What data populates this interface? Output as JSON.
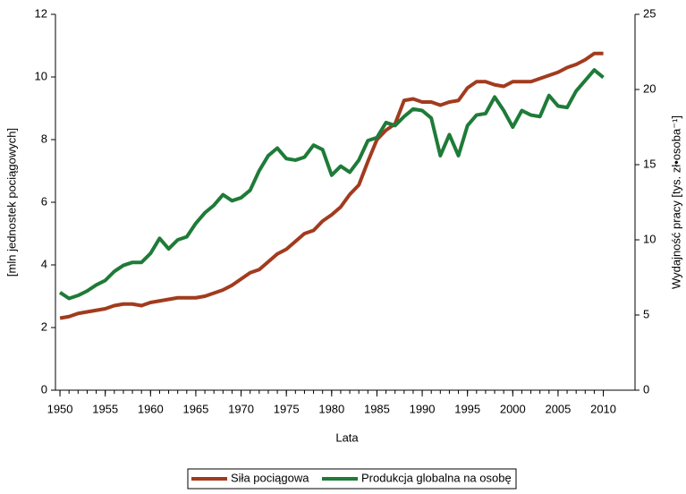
{
  "chart_data": {
    "type": "line",
    "x_label": "Lata",
    "y_label": "[mln jednostek pociągowych]",
    "y2_label": "Wydajność pracy [tys. zł•osoba⁻¹]",
    "x": [
      1950,
      1951,
      1952,
      1953,
      1954,
      1955,
      1956,
      1957,
      1958,
      1959,
      1960,
      1961,
      1962,
      1963,
      1964,
      1965,
      1966,
      1967,
      1968,
      1969,
      1970,
      1971,
      1972,
      1973,
      1974,
      1975,
      1976,
      1977,
      1978,
      1979,
      1980,
      1981,
      1982,
      1983,
      1984,
      1985,
      1986,
      1987,
      1988,
      1989,
      1990,
      1991,
      1992,
      1993,
      1994,
      1995,
      1996,
      1997,
      1998,
      1999,
      2000,
      2001,
      2002,
      2003,
      2004,
      2005,
      2006,
      2007,
      2008,
      2009,
      2010
    ],
    "xlim": [
      1949.5,
      2013.5
    ],
    "xticks": [
      1950,
      1955,
      1960,
      1965,
      1970,
      1975,
      1980,
      1985,
      1990,
      1995,
      2000,
      2005,
      2010
    ],
    "ylim": [
      0,
      12
    ],
    "yticks": [
      0,
      2,
      4,
      6,
      8,
      10,
      12
    ],
    "y2lim": [
      0,
      25
    ],
    "y2ticks": [
      0,
      5,
      10,
      15,
      20,
      25
    ],
    "legend": "bottom",
    "series": [
      {
        "name": "Siła pociągowa",
        "color": "#a23b1e",
        "values": [
          2.3,
          2.35,
          2.45,
          2.5,
          2.55,
          2.6,
          2.7,
          2.75,
          2.75,
          2.7,
          2.8,
          2.85,
          2.9,
          2.95,
          2.95,
          2.95,
          3.0,
          3.1,
          3.2,
          3.35,
          3.55,
          3.75,
          3.85,
          4.1,
          4.35,
          4.5,
          4.75,
          5.0,
          5.1,
          5.4,
          5.6,
          5.85,
          6.25,
          6.55,
          7.3,
          8.0,
          8.3,
          8.5,
          9.25,
          9.3,
          9.2,
          9.2,
          9.1,
          9.2,
          9.25,
          9.65,
          9.85,
          9.85,
          9.75,
          9.7,
          9.85,
          9.85,
          9.85,
          9.95,
          10.05,
          10.15,
          10.3,
          10.4,
          10.55,
          10.75,
          10.75
        ]
      },
      {
        "name": "Produkcja globalna na osobę",
        "color": "#1e7b38",
        "axis": "y2",
        "values": [
          6.5,
          6.1,
          6.3,
          6.6,
          7.0,
          7.3,
          7.9,
          8.3,
          8.5,
          8.5,
          9.1,
          10.1,
          9.4,
          10.0,
          10.2,
          11.1,
          11.8,
          12.3,
          13.0,
          12.6,
          12.8,
          13.3,
          14.6,
          15.6,
          16.1,
          15.4,
          15.3,
          15.5,
          16.3,
          16.0,
          14.3,
          14.9,
          14.5,
          15.3,
          16.6,
          16.8,
          17.8,
          17.6,
          18.2,
          18.7,
          18.6,
          18.1,
          15.6,
          17.0,
          15.6,
          17.6,
          18.3,
          18.4,
          19.5,
          18.6,
          17.5,
          18.6,
          18.3,
          18.2,
          19.6,
          18.9,
          18.8,
          19.9,
          20.6,
          21.3,
          20.8
        ]
      }
    ]
  }
}
